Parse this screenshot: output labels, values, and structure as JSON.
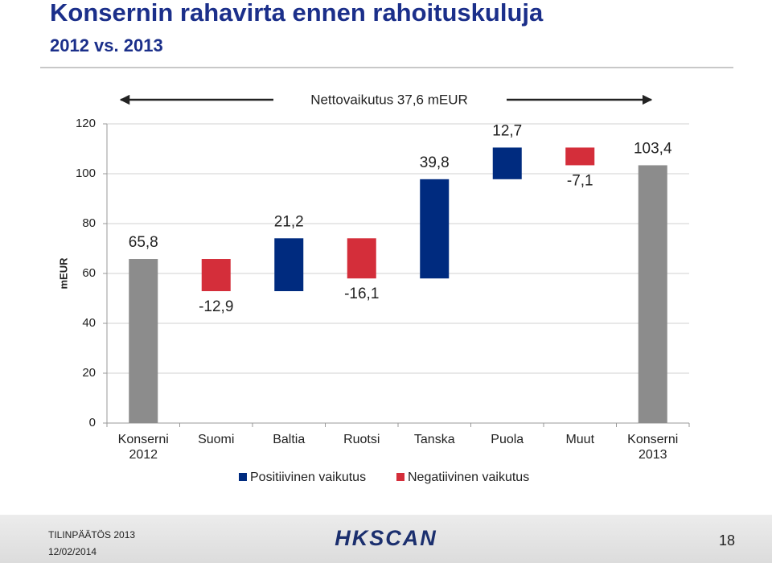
{
  "chart_data": {
    "type": "waterfall",
    "title": "Konsernin rahavirta ennen rahoituskuluja",
    "subtitle": "2012 vs. 2013",
    "annotation": "Nettovaikutus 37,6 mEUR",
    "y_label": "mEUR",
    "categories": [
      "Konserni 2012",
      "Suomi",
      "Baltia",
      "Ruotsi",
      "Tanska",
      "Puola",
      "Muut",
      "Konserni 2013"
    ],
    "values": [
      65.8,
      -12.9,
      21.2,
      -16.1,
      39.8,
      12.7,
      -7.1,
      103.4
    ],
    "value_labels": [
      "65,8",
      "-12,9",
      "21,2",
      "-16,1",
      "39,8",
      "12,7",
      "-7,1",
      "103,4"
    ],
    "is_total": [
      true,
      false,
      false,
      false,
      false,
      false,
      false,
      true
    ],
    "total_color": "#8c8c8c",
    "legend": [
      {
        "name": "Positiivinen vaikutus",
        "color": "#002b7f"
      },
      {
        "name": "Negatiivinen vaikutus",
        "color": "#d42e3a"
      }
    ],
    "ylim": [
      0,
      120
    ],
    "yticks": [
      0,
      20,
      40,
      60,
      80,
      100,
      120
    ],
    "grid": true
  },
  "footer": {
    "report": "TILINPÄÄTÖS 2013",
    "date": "12/02/2014",
    "logo": "HKSCAN",
    "page": 18
  }
}
